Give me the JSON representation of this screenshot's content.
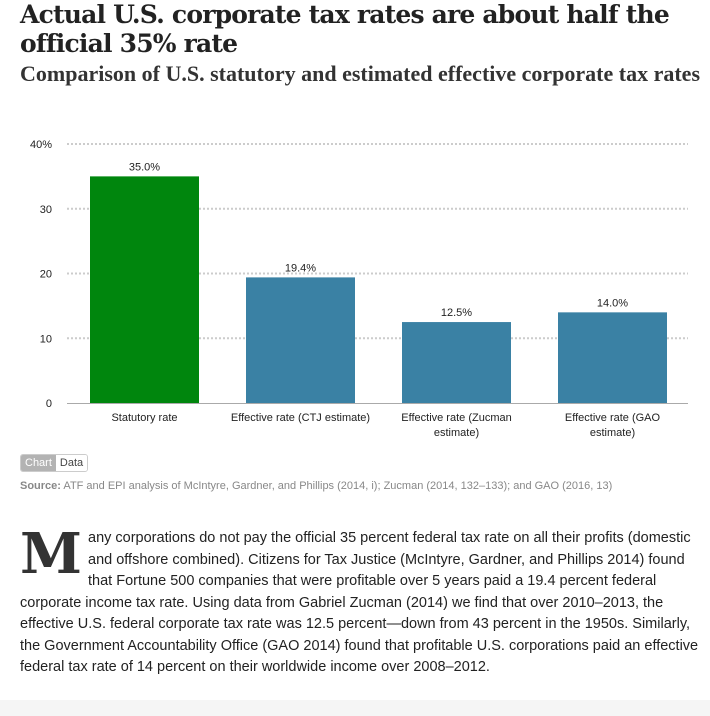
{
  "header": {
    "title": "Actual U.S. corporate tax rates are about half the official 35% rate",
    "subtitle": "Comparison of U.S. statutory and estimated effective corporate tax rates"
  },
  "colors": {
    "statutory": "#00860d",
    "effective": "#3a81a4",
    "gridline": "#cccccc",
    "axis": "#aaaaaa"
  },
  "chart_data": {
    "type": "bar",
    "title": "Actual U.S. corporate tax rates are about half the official 35% rate",
    "subtitle": "Comparison of U.S. statutory and estimated effective corporate tax rates",
    "categories": [
      [
        "Statutory rate"
      ],
      [
        "Effective rate (CTJ estimate)"
      ],
      [
        "Effective rate (Zucman",
        "estimate)"
      ],
      [
        "Effective rate (GAO",
        "estimate)"
      ]
    ],
    "values": [
      35.0,
      19.4,
      12.5,
      14.0
    ],
    "value_labels": [
      "35.0%",
      "19.4%",
      "12.5%",
      "14.0%"
    ],
    "bar_colors": [
      "#00860d",
      "#3a81a4",
      "#3a81a4",
      "#3a81a4"
    ],
    "xlabel": "",
    "ylabel": "",
    "ylim": [
      0,
      40
    ],
    "yticks": [
      0,
      10,
      20,
      30,
      40
    ],
    "ytick_labels": [
      "0",
      "10",
      "20",
      "30",
      "40%"
    ],
    "grid": true,
    "legend": "none"
  },
  "controls": {
    "chart_tab": "Chart",
    "data_tab": "Data"
  },
  "source": {
    "label": "Source:",
    "text": " ATF and EPI analysis of McIntyre, Gardner, and Phillips (2014, i); Zucman (2014, 132–133); and GAO (2016, 13)"
  },
  "article": {
    "dropcap": "M",
    "text": "any corporations do not pay the official 35 percent federal tax rate on all their profits (domestic and offshore combined). Citizens for Tax Justice (McIntyre, Gardner, and Phillips 2014) found that Fortune 500 companies that were profitable over 5 years paid a 19.4 percent federal corporate income tax rate. Using data from Gabriel Zucman (2014) we find that over 2010–2013, the effective U.S. federal corporate tax rate was 12.5 percent—down from 43 percent in the 1950s. Similarly, the Government Accountability Office (GAO 2014) found that profitable U.S. corporations paid an effective federal tax rate of 14 percent on their worldwide income over 2008–2012."
  }
}
